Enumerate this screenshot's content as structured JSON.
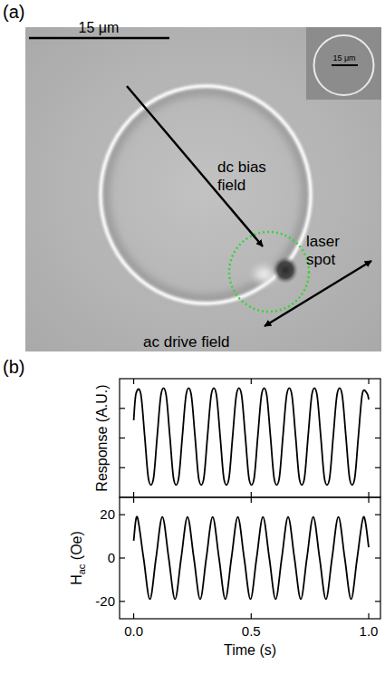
{
  "panel_a": {
    "label": "(a)",
    "scale_bar": "15 μm",
    "inset_scale_bar": "15 μm",
    "annotations": {
      "dc_bias": "dc bias field",
      "laser": "laser spot",
      "ac_drive": "ac drive field"
    }
  },
  "panel_b": {
    "label": "(b)"
  },
  "chart_data": [
    {
      "type": "line",
      "y_label": "Response (A.U.)",
      "color": "#000000",
      "tick_labels": false,
      "xlim": [
        -0.06,
        1.05
      ],
      "xticks": [
        0,
        0.5,
        1
      ],
      "ylim": [
        0,
        4
      ],
      "yticks": [
        1,
        2,
        3
      ],
      "x": [
        0,
        0.01,
        0.03,
        0.047,
        0.0635,
        0.0835,
        0.1,
        0.117,
        0.137,
        0.154,
        0.1705,
        0.1905,
        0.207,
        0.224,
        0.244,
        0.261,
        0.2775,
        0.2975,
        0.314,
        0.331,
        0.351,
        0.368,
        0.3845,
        0.4045,
        0.421,
        0.438,
        0.458,
        0.475,
        0.4915,
        0.5115,
        0.528,
        0.545,
        0.565,
        0.582,
        0.5985,
        0.6185,
        0.635,
        0.652,
        0.672,
        0.689,
        0.7055,
        0.7255,
        0.742,
        0.759,
        0.779,
        0.796,
        0.8125,
        0.8325,
        0.849,
        0.866,
        0.886,
        0.903,
        0.9195,
        0.9395,
        0.956,
        0.973,
        0.993,
        1.0
      ],
      "values": [
        2.6,
        3.5,
        3.5,
        2.05,
        0.6,
        0.6,
        2.05,
        3.5,
        3.5,
        2.05,
        0.6,
        0.6,
        2.05,
        3.5,
        3.5,
        2.05,
        0.6,
        0.6,
        2.05,
        3.5,
        3.5,
        2.05,
        0.6,
        0.6,
        2.05,
        3.5,
        3.5,
        2.05,
        0.6,
        0.6,
        2.05,
        3.5,
        3.5,
        2.05,
        0.6,
        0.6,
        2.05,
        3.5,
        3.5,
        2.05,
        0.6,
        0.6,
        2.05,
        3.5,
        3.5,
        2.05,
        0.6,
        0.6,
        2.05,
        3.5,
        3.5,
        2.05,
        0.6,
        0.6,
        2.05,
        3.5,
        3.5,
        3.3
      ]
    },
    {
      "type": "line",
      "x_label": "Time (s)",
      "y_label": {
        "main": "H",
        "sub": "ac",
        "rest": " (Oe)"
      },
      "color": "#000000",
      "xlim": [
        -0.06,
        1.05
      ],
      "xticks": [
        {
          "value": 0,
          "label": "0.0"
        },
        {
          "value": 0.5,
          "label": "0.5"
        },
        {
          "value": 1,
          "label": "1.0"
        }
      ],
      "ylim": [
        -28,
        28
      ],
      "yticks": [
        -20,
        0,
        20
      ],
      "x": [
        0,
        0.015,
        0.042,
        0.069,
        0.095,
        0.122,
        0.149,
        0.176,
        0.202,
        0.229,
        0.256,
        0.283,
        0.309,
        0.336,
        0.363,
        0.39,
        0.416,
        0.443,
        0.47,
        0.497,
        0.523,
        0.55,
        0.577,
        0.604,
        0.63,
        0.657,
        0.684,
        0.711,
        0.737,
        0.764,
        0.791,
        0.818,
        0.844,
        0.871,
        0.898,
        0.925,
        0.951,
        0.978,
        1.0
      ],
      "values": [
        8,
        19,
        0,
        -19,
        0,
        19,
        0,
        -19,
        0,
        19,
        0,
        -19,
        0,
        19,
        0,
        -19,
        0,
        19,
        0,
        -19,
        0,
        19,
        0,
        -19,
        0,
        19,
        0,
        -19,
        0,
        19,
        0,
        -19,
        0,
        19,
        0,
        -19,
        0,
        19,
        5
      ]
    }
  ]
}
